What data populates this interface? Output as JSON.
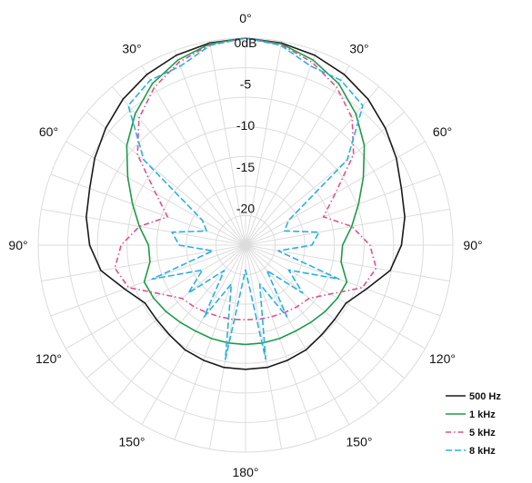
{
  "chart_data": {
    "type": "polar-line",
    "title": "",
    "angle_labels": [
      {
        "deg": 0,
        "text": "0°"
      },
      {
        "deg": 30,
        "text": "30°"
      },
      {
        "deg": 60,
        "text": "60°"
      },
      {
        "deg": 90,
        "text": "90°"
      },
      {
        "deg": 120,
        "text": "120°"
      },
      {
        "deg": 150,
        "text": "150°"
      },
      {
        "deg": 180,
        "text": "180°"
      },
      {
        "deg": 210,
        "text": "150°"
      },
      {
        "deg": 240,
        "text": "120°"
      },
      {
        "deg": 270,
        "text": "90°"
      },
      {
        "deg": 300,
        "text": "60°"
      },
      {
        "deg": 330,
        "text": "30°"
      }
    ],
    "radial_ticks": [
      {
        "value": 0,
        "text": "0dB"
      },
      {
        "value": -5,
        "text": "-5"
      },
      {
        "value": -10,
        "text": "-10"
      },
      {
        "value": -15,
        "text": "-15"
      },
      {
        "value": -20,
        "text": "-20"
      }
    ],
    "r_range_db": [
      -25,
      0
    ],
    "angle_step_deg": 10,
    "grid": true,
    "legend_position": "bottom-right",
    "series": [
      {
        "name": "500 Hz",
        "color": "#1a1a1a",
        "dash": "solid",
        "points": [
          [
            0,
            0
          ],
          [
            10,
            -0.2
          ],
          [
            20,
            -0.6
          ],
          [
            30,
            -1.2
          ],
          [
            40,
            -2
          ],
          [
            50,
            -3
          ],
          [
            60,
            -4
          ],
          [
            70,
            -5
          ],
          [
            80,
            -5.5
          ],
          [
            90,
            -6.2
          ],
          [
            100,
            -7.3
          ],
          [
            110,
            -9.5
          ],
          [
            120,
            -11
          ],
          [
            130,
            -11
          ],
          [
            140,
            -10.8
          ],
          [
            150,
            -10.4
          ],
          [
            160,
            -10.2
          ],
          [
            170,
            -10
          ],
          [
            180,
            -10
          ]
        ]
      },
      {
        "name": "1 kHz",
        "color": "#1e9a48",
        "dash": "solid",
        "points": [
          [
            0,
            0
          ],
          [
            10,
            -0.3
          ],
          [
            20,
            -1.2
          ],
          [
            30,
            -2.5
          ],
          [
            40,
            -4.3
          ],
          [
            50,
            -6.3
          ],
          [
            60,
            -8.6
          ],
          [
            70,
            -10.5
          ],
          [
            80,
            -12
          ],
          [
            90,
            -13.3
          ],
          [
            100,
            -13.3
          ],
          [
            110,
            -12
          ],
          [
            120,
            -12.2
          ],
          [
            130,
            -12.5
          ],
          [
            140,
            -12.8
          ],
          [
            150,
            -13
          ],
          [
            160,
            -13
          ],
          [
            170,
            -13
          ],
          [
            180,
            -13
          ]
        ]
      },
      {
        "name": "5 kHz",
        "color": "#e0508c",
        "dash": "dashdot",
        "points": [
          [
            0,
            0
          ],
          [
            10,
            -0.4
          ],
          [
            20,
            -1.5
          ],
          [
            30,
            -3
          ],
          [
            40,
            -5
          ],
          [
            50,
            -8
          ],
          [
            60,
            -12.5
          ],
          [
            70,
            -15
          ],
          [
            80,
            -12
          ],
          [
            90,
            -10
          ],
          [
            100,
            -9
          ],
          [
            110,
            -10
          ],
          [
            120,
            -13.2
          ],
          [
            130,
            -15
          ],
          [
            140,
            -15.3
          ],
          [
            150,
            -15.6
          ],
          [
            160,
            -15.8
          ],
          [
            170,
            -15.9
          ],
          [
            180,
            -16
          ]
        ]
      },
      {
        "name": "8 kHz",
        "color": "#2ab0e0",
        "dash": "dashed",
        "points": [
          [
            0,
            0
          ],
          [
            10,
            -0.5
          ],
          [
            20,
            -2
          ],
          [
            30,
            -2
          ],
          [
            40,
            -3
          ],
          [
            50,
            -9
          ],
          [
            60,
            -19
          ],
          [
            70,
            -20
          ],
          [
            80,
            -16
          ],
          [
            90,
            -17
          ],
          [
            100,
            -21
          ],
          [
            110,
            -13
          ],
          [
            120,
            -19
          ],
          [
            130,
            -16
          ],
          [
            140,
            -21
          ],
          [
            150,
            -15
          ],
          [
            160,
            -20
          ],
          [
            170,
            -11
          ],
          [
            180,
            -22
          ]
        ]
      }
    ]
  }
}
